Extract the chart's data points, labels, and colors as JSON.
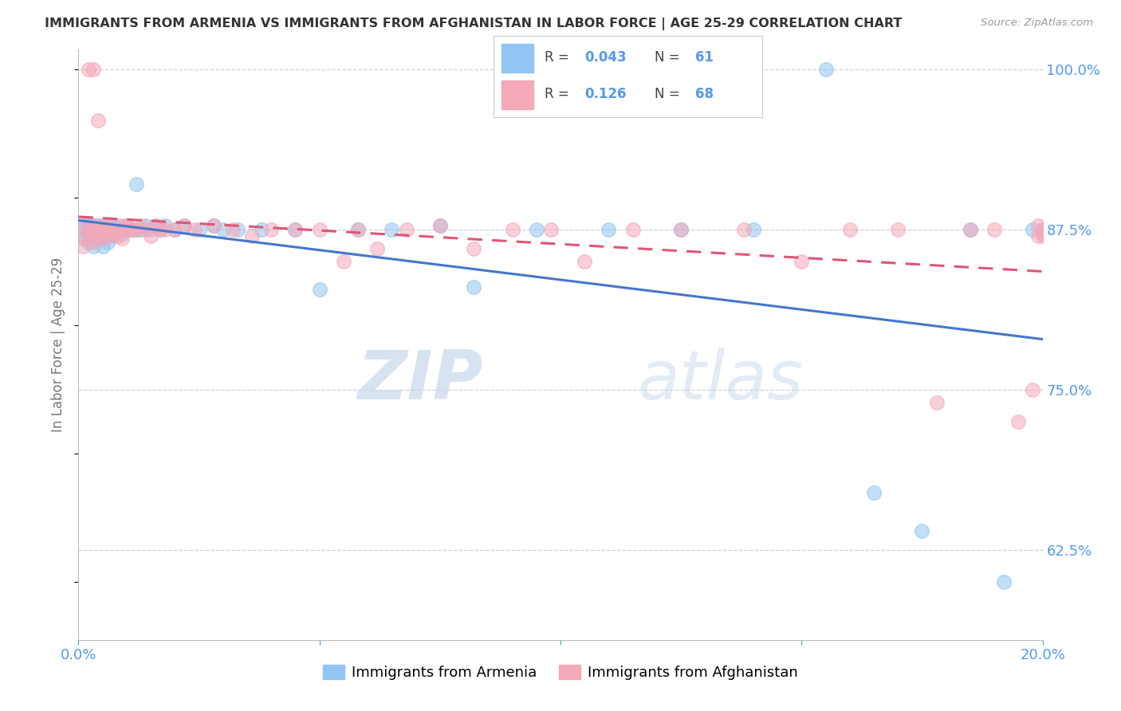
{
  "title": "IMMIGRANTS FROM ARMENIA VS IMMIGRANTS FROM AFGHANISTAN IN LABOR FORCE | AGE 25-29 CORRELATION CHART",
  "source": "Source: ZipAtlas.com",
  "ylabel_label": "In Labor Force | Age 25-29",
  "legend_label_blue": "Immigrants from Armenia",
  "legend_label_pink": "Immigrants from Afghanistan",
  "watermark_zip": "ZIP",
  "watermark_atlas": "atlas",
  "blue_color": "#92C5F2",
  "pink_color": "#F5A8B8",
  "blue_line_color": "#4477CC",
  "pink_line_color": "#E05575",
  "title_color": "#333333",
  "axis_label_color": "#5599EE",
  "background_color": "#FFFFFF",
  "xlim": [
    0.0,
    0.2
  ],
  "ylim_low": 0.555,
  "ylim_high": 1.015,
  "ytick_vals": [
    0.625,
    0.75,
    0.875,
    1.0
  ],
  "ytick_labels": [
    "62.5%",
    "75.0%",
    "87.5%",
    "100.0%"
  ],
  "xtick_vals": [
    0.0,
    0.05,
    0.1,
    0.15,
    0.2
  ],
  "xtick_labels": [
    "0.0%",
    "",
    "",
    "",
    "20.0%"
  ],
  "blue_x": [
    0.001,
    0.001,
    0.001,
    0.002,
    0.002,
    0.002,
    0.002,
    0.003,
    0.003,
    0.003,
    0.003,
    0.004,
    0.004,
    0.004,
    0.005,
    0.005,
    0.005,
    0.006,
    0.006,
    0.006,
    0.007,
    0.007,
    0.007,
    0.008,
    0.008,
    0.009,
    0.009,
    0.01,
    0.01,
    0.011,
    0.012,
    0.012,
    0.013,
    0.014,
    0.015,
    0.016,
    0.017,
    0.018,
    0.02,
    0.022,
    0.025,
    0.028,
    0.03,
    0.033,
    0.038,
    0.045,
    0.05,
    0.058,
    0.065,
    0.075,
    0.082,
    0.095,
    0.11,
    0.125,
    0.14,
    0.155,
    0.165,
    0.175,
    0.185,
    0.192,
    0.198
  ],
  "blue_y": [
    0.88,
    0.875,
    0.868,
    0.878,
    0.872,
    0.865,
    0.88,
    0.878,
    0.87,
    0.862,
    0.875,
    0.878,
    0.872,
    0.868,
    0.875,
    0.878,
    0.862,
    0.875,
    0.878,
    0.865,
    0.875,
    0.878,
    0.87,
    0.875,
    0.878,
    0.875,
    0.872,
    0.878,
    0.875,
    0.875,
    0.91,
    0.875,
    0.875,
    0.878,
    0.875,
    0.878,
    0.875,
    0.878,
    0.875,
    0.878,
    0.875,
    0.878,
    0.875,
    0.875,
    0.875,
    0.875,
    0.828,
    0.875,
    0.875,
    0.878,
    0.83,
    0.875,
    0.875,
    0.875,
    0.875,
    1.0,
    0.67,
    0.64,
    0.875,
    0.6,
    0.875
  ],
  "pink_x": [
    0.001,
    0.001,
    0.001,
    0.002,
    0.002,
    0.002,
    0.003,
    0.003,
    0.003,
    0.004,
    0.004,
    0.004,
    0.005,
    0.005,
    0.005,
    0.006,
    0.006,
    0.007,
    0.007,
    0.008,
    0.008,
    0.009,
    0.009,
    0.01,
    0.01,
    0.011,
    0.012,
    0.013,
    0.014,
    0.015,
    0.016,
    0.017,
    0.018,
    0.02,
    0.022,
    0.024,
    0.028,
    0.032,
    0.036,
    0.04,
    0.045,
    0.05,
    0.055,
    0.058,
    0.062,
    0.068,
    0.075,
    0.082,
    0.09,
    0.098,
    0.105,
    0.115,
    0.125,
    0.138,
    0.15,
    0.16,
    0.17,
    0.178,
    0.185,
    0.19,
    0.195,
    0.198,
    0.199,
    0.199,
    0.2,
    0.2,
    0.2,
    0.2
  ],
  "pink_y": [
    0.878,
    0.87,
    0.862,
    0.875,
    0.868,
    1.0,
    1.0,
    0.878,
    0.865,
    0.875,
    0.87,
    0.96,
    0.875,
    0.878,
    0.868,
    0.875,
    0.87,
    0.878,
    0.872,
    0.875,
    0.87,
    0.878,
    0.868,
    0.875,
    0.878,
    0.875,
    0.875,
    0.878,
    0.875,
    0.87,
    0.878,
    0.875,
    0.875,
    0.875,
    0.878,
    0.875,
    0.878,
    0.875,
    0.87,
    0.875,
    0.875,
    0.875,
    0.85,
    0.875,
    0.86,
    0.875,
    0.878,
    0.86,
    0.875,
    0.875,
    0.85,
    0.875,
    0.875,
    0.875,
    0.85,
    0.875,
    0.875,
    0.74,
    0.875,
    0.875,
    0.725,
    0.75,
    0.878,
    0.87,
    0.875,
    0.872,
    0.875,
    0.87
  ]
}
